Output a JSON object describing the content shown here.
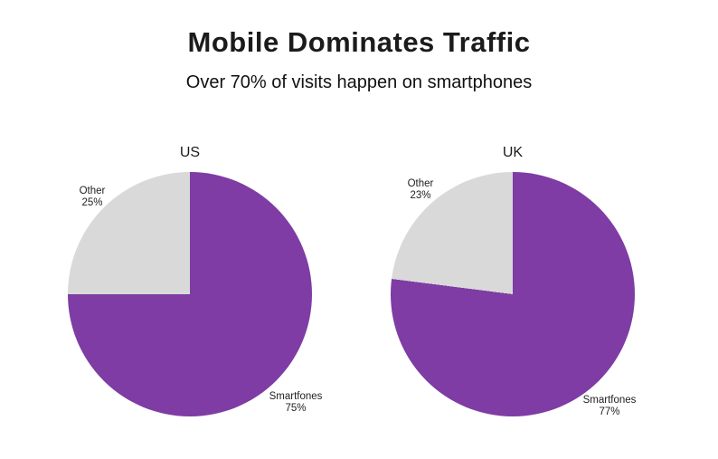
{
  "page": {
    "title": "Mobile Dominates Traffic",
    "subtitle": "Over 70% of visits happen on smartphones"
  },
  "colors": {
    "smartphones": "#7e3ca4",
    "other": "#d9d9d9",
    "background": "#ffffff",
    "title_text": "#1b1b1b",
    "label_text": "#222222"
  },
  "chart_data": [
    {
      "type": "pie",
      "title": "US",
      "legend_position": "none",
      "start_angle_deg": 0,
      "direction": "clockwise",
      "slices": [
        {
          "label": "Smartfones",
          "value": 75,
          "display": "75%",
          "color_key": "smartphones"
        },
        {
          "label": "Other",
          "value": 25,
          "display": "25%",
          "color_key": "other"
        }
      ]
    },
    {
      "type": "pie",
      "title": "UK",
      "legend_position": "none",
      "start_angle_deg": 0,
      "direction": "clockwise",
      "slices": [
        {
          "label": "Smartfones",
          "value": 77,
          "display": "77%",
          "color_key": "smartphones"
        },
        {
          "label": "Other",
          "value": 23,
          "display": "23%",
          "color_key": "other"
        }
      ]
    }
  ]
}
